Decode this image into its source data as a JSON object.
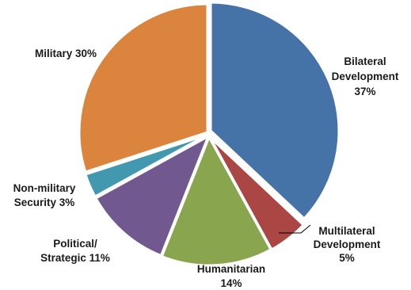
{
  "chart_data": {
    "type": "pie",
    "title": "",
    "legend": "none",
    "slices": [
      {
        "label_lines": [
          "Bilateral",
          "Development",
          "37%"
        ],
        "value": 37,
        "color": "#4572A7"
      },
      {
        "label_lines": [
          "Multilateral",
          "Development",
          "5%"
        ],
        "value": 5,
        "color": "#AA4643"
      },
      {
        "label_lines": [
          "Humanitarian",
          "14%"
        ],
        "value": 14,
        "color": "#89A54E"
      },
      {
        "label_lines": [
          "Political/",
          "Strategic 11%"
        ],
        "value": 11,
        "color": "#71588F"
      },
      {
        "label_lines": [
          "Non-military",
          "Security 3%"
        ],
        "value": 3,
        "color": "#4198AF"
      },
      {
        "label_lines": [
          "Military 30%"
        ],
        "value": 30,
        "color": "#DB843D"
      }
    ]
  }
}
